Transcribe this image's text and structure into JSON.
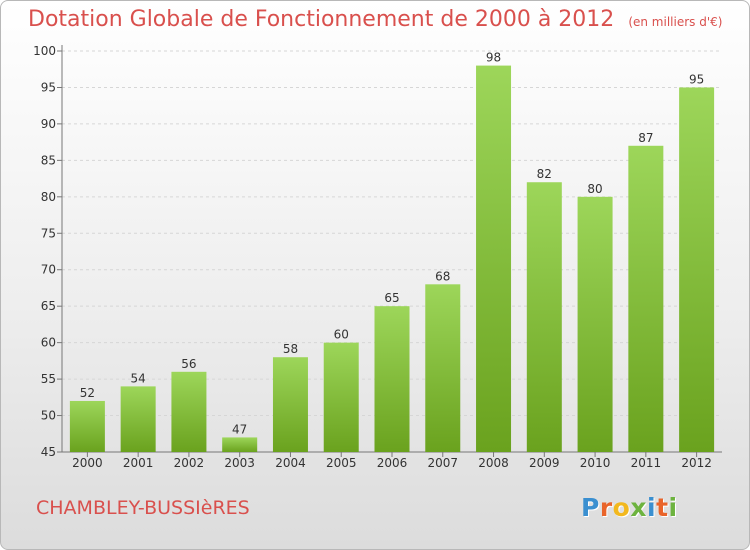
{
  "title": "Dotation Globale de Fonctionnement de 2000 à 2012",
  "unit": "(en milliers d'€)",
  "commune": "CHAMBLEY-BUSSIèRES",
  "logo": {
    "letters": [
      "P",
      "r",
      "o",
      "x",
      "i",
      "t",
      "i"
    ],
    "colors": [
      "#3a8fd0",
      "#e9642a",
      "#f2b81e",
      "#6db33f",
      "#3a8fd0",
      "#e9642a",
      "#6db33f"
    ]
  },
  "colors": {
    "bar_light": "#9dd65a",
    "bar_dark": "#6aa21e",
    "title": "#d9504d"
  },
  "chart_data": {
    "type": "bar",
    "title": "Dotation Globale de Fonctionnement de 2000 à 2012",
    "subtitle": "(en milliers d'€)",
    "categories": [
      "2000",
      "2001",
      "2002",
      "2003",
      "2004",
      "2005",
      "2006",
      "2007",
      "2008",
      "2009",
      "2010",
      "2011",
      "2012"
    ],
    "values": [
      52,
      54,
      56,
      47,
      58,
      60,
      65,
      68,
      98,
      82,
      80,
      87,
      95
    ],
    "ylim": [
      45,
      100
    ],
    "yticks": [
      45,
      50,
      55,
      60,
      65,
      70,
      75,
      80,
      85,
      90,
      95,
      100
    ],
    "grid": true
  }
}
